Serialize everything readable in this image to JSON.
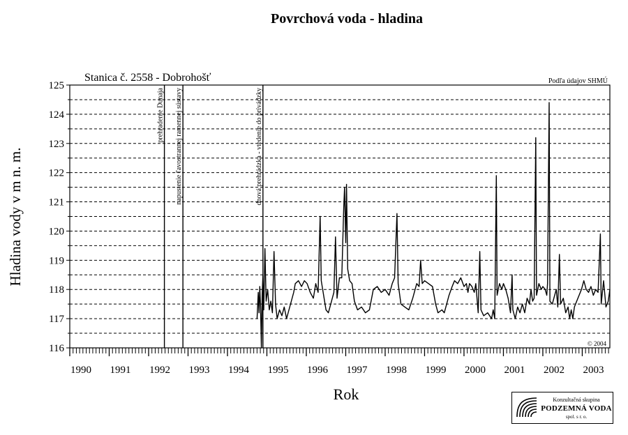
{
  "chart_data": {
    "type": "line",
    "title": "Povrchová voda - hladina",
    "station": "Stanica č. 2558 - Dobrohošť",
    "source_note": "Podľa údajov SHMÚ",
    "copyright": "© 2004",
    "xlabel": "Rok",
    "ylabel": "Hladina vody v m n. m.",
    "xlim": [
      1990,
      2003.7
    ],
    "ylim": [
      116,
      125
    ],
    "x_ticks": [
      "1990",
      "1991",
      "1992",
      "1993",
      "1994",
      "1995",
      "1996",
      "1997",
      "1998",
      "1999",
      "2000",
      "2001",
      "2002",
      "2003"
    ],
    "y_ticks": [
      116,
      117,
      118,
      119,
      120,
      121,
      122,
      123,
      124,
      125
    ],
    "grid": "horizontal-dashed",
    "events": [
      {
        "x": 1992.4,
        "label": "prehradenie Dunaja"
      },
      {
        "x": 1992.87,
        "label": "napustenie ľavostrannej ramennej sústavy"
      },
      {
        "x": 1994.9,
        "label": "dnová prehrádzka - vtedenie do prívádzky"
      }
    ],
    "series": [
      {
        "values": [
          [
            1994.75,
            117.0
          ],
          [
            1994.78,
            117.9
          ],
          [
            1994.8,
            117.2
          ],
          [
            1994.82,
            118.1
          ],
          [
            1994.84,
            117.4
          ],
          [
            1994.86,
            116.0
          ],
          [
            1994.88,
            117.8
          ],
          [
            1994.9,
            118.5
          ],
          [
            1994.92,
            117.3
          ],
          [
            1994.95,
            119.4
          ],
          [
            1994.98,
            117.6
          ],
          [
            1995.02,
            118.0
          ],
          [
            1995.06,
            117.3
          ],
          [
            1995.1,
            117.6
          ],
          [
            1995.14,
            117.2
          ],
          [
            1995.18,
            119.3
          ],
          [
            1995.22,
            117.5
          ],
          [
            1995.26,
            117.0
          ],
          [
            1995.32,
            117.3
          ],
          [
            1995.38,
            117.1
          ],
          [
            1995.44,
            117.4
          ],
          [
            1995.5,
            117.0
          ],
          [
            1995.56,
            117.3
          ],
          [
            1995.62,
            117.6
          ],
          [
            1995.68,
            117.9
          ],
          [
            1995.72,
            118.2
          ],
          [
            1995.8,
            118.3
          ],
          [
            1995.88,
            118.1
          ],
          [
            1995.95,
            118.3
          ],
          [
            1996.02,
            118.2
          ],
          [
            1996.1,
            117.9
          ],
          [
            1996.18,
            117.7
          ],
          [
            1996.24,
            118.2
          ],
          [
            1996.3,
            117.9
          ],
          [
            1996.35,
            120.5
          ],
          [
            1996.38,
            118.3
          ],
          [
            1996.44,
            117.8
          ],
          [
            1996.5,
            117.3
          ],
          [
            1996.56,
            117.2
          ],
          [
            1996.62,
            117.5
          ],
          [
            1996.7,
            117.9
          ],
          [
            1996.74,
            119.8
          ],
          [
            1996.78,
            117.7
          ],
          [
            1996.84,
            118.4
          ],
          [
            1996.9,
            118.4
          ],
          [
            1996.95,
            120.8
          ],
          [
            1996.97,
            121.5
          ],
          [
            1997.0,
            119.6
          ],
          [
            1997.02,
            121.6
          ],
          [
            1997.05,
            118.7
          ],
          [
            1997.1,
            118.3
          ],
          [
            1997.16,
            118.2
          ],
          [
            1997.22,
            117.6
          ],
          [
            1997.3,
            117.3
          ],
          [
            1997.4,
            117.4
          ],
          [
            1997.5,
            117.2
          ],
          [
            1997.6,
            117.3
          ],
          [
            1997.7,
            118.0
          ],
          [
            1997.8,
            118.1
          ],
          [
            1997.9,
            117.9
          ],
          [
            1998.0,
            118.0
          ],
          [
            1998.1,
            117.8
          ],
          [
            1998.18,
            118.2
          ],
          [
            1998.24,
            118.4
          ],
          [
            1998.3,
            120.6
          ],
          [
            1998.33,
            118.2
          ],
          [
            1998.4,
            117.5
          ],
          [
            1998.5,
            117.4
          ],
          [
            1998.6,
            117.3
          ],
          [
            1998.7,
            117.7
          ],
          [
            1998.8,
            118.2
          ],
          [
            1998.86,
            118.1
          ],
          [
            1998.9,
            119.0
          ],
          [
            1998.94,
            118.2
          ],
          [
            1999.0,
            118.3
          ],
          [
            1999.1,
            118.2
          ],
          [
            1999.2,
            118.1
          ],
          [
            1999.28,
            117.5
          ],
          [
            1999.34,
            117.2
          ],
          [
            1999.44,
            117.3
          ],
          [
            1999.5,
            117.2
          ],
          [
            1999.56,
            117.5
          ],
          [
            1999.62,
            117.8
          ],
          [
            1999.7,
            118.1
          ],
          [
            1999.76,
            118.3
          ],
          [
            1999.84,
            118.2
          ],
          [
            1999.92,
            118.4
          ],
          [
            2000.0,
            118.1
          ],
          [
            2000.06,
            118.2
          ],
          [
            2000.1,
            117.9
          ],
          [
            2000.14,
            118.2
          ],
          [
            2000.2,
            118.1
          ],
          [
            2000.26,
            117.9
          ],
          [
            2000.3,
            118.2
          ],
          [
            2000.36,
            117.2
          ],
          [
            2000.4,
            119.3
          ],
          [
            2000.43,
            117.3
          ],
          [
            2000.5,
            117.1
          ],
          [
            2000.6,
            117.2
          ],
          [
            2000.7,
            117.0
          ],
          [
            2000.74,
            117.3
          ],
          [
            2000.78,
            117.0
          ],
          [
            2000.82,
            121.9
          ],
          [
            2000.84,
            117.8
          ],
          [
            2000.9,
            118.2
          ],
          [
            2000.96,
            118.0
          ],
          [
            2001.0,
            118.2
          ],
          [
            2001.06,
            118.0
          ],
          [
            2001.12,
            117.7
          ],
          [
            2001.18,
            117.2
          ],
          [
            2001.22,
            118.5
          ],
          [
            2001.24,
            117.3
          ],
          [
            2001.3,
            117.0
          ],
          [
            2001.36,
            117.4
          ],
          [
            2001.42,
            117.2
          ],
          [
            2001.48,
            117.5
          ],
          [
            2001.54,
            117.2
          ],
          [
            2001.6,
            117.7
          ],
          [
            2001.66,
            117.5
          ],
          [
            2001.7,
            118.0
          ],
          [
            2001.74,
            117.6
          ],
          [
            2001.78,
            117.7
          ],
          [
            2001.82,
            123.2
          ],
          [
            2001.84,
            117.8
          ],
          [
            2001.9,
            118.2
          ],
          [
            2001.96,
            118.0
          ],
          [
            2002.0,
            118.1
          ],
          [
            2002.06,
            118.0
          ],
          [
            2002.1,
            117.8
          ],
          [
            2002.12,
            118.2
          ],
          [
            2002.16,
            124.4
          ],
          [
            2002.18,
            117.6
          ],
          [
            2002.24,
            117.5
          ],
          [
            2002.3,
            117.8
          ],
          [
            2002.34,
            118.0
          ],
          [
            2002.38,
            117.4
          ],
          [
            2002.42,
            119.2
          ],
          [
            2002.45,
            117.5
          ],
          [
            2002.52,
            117.7
          ],
          [
            2002.58,
            117.2
          ],
          [
            2002.64,
            117.4
          ],
          [
            2002.68,
            117.0
          ],
          [
            2002.72,
            117.3
          ],
          [
            2002.76,
            117.0
          ],
          [
            2002.8,
            117.4
          ],
          [
            2002.86,
            117.6
          ],
          [
            2002.92,
            117.8
          ],
          [
            2002.98,
            118.0
          ],
          [
            2003.04,
            118.3
          ],
          [
            2003.1,
            118.0
          ],
          [
            2003.16,
            117.9
          ],
          [
            2003.22,
            118.1
          ],
          [
            2003.28,
            117.8
          ],
          [
            2003.34,
            118.0
          ],
          [
            2003.4,
            117.9
          ],
          [
            2003.46,
            119.9
          ],
          [
            2003.48,
            117.5
          ],
          [
            2003.54,
            118.3
          ],
          [
            2003.6,
            117.4
          ],
          [
            2003.66,
            117.6
          ],
          [
            2003.7,
            118.0
          ]
        ]
      }
    ]
  },
  "logo": {
    "line1": "Konzultačná skupina",
    "line2": "PODZEMNÁ VODA",
    "line3": "spol. s r. o."
  }
}
